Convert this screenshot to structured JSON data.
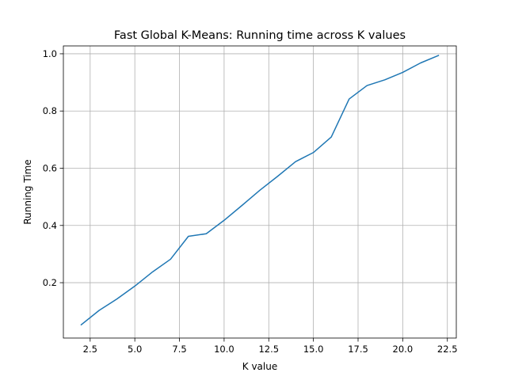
{
  "chart_data": {
    "type": "line",
    "title": "Fast Global K-Means: Running time across K values",
    "xlabel": "K value",
    "ylabel": "Running Time",
    "xlim": [
      1.0,
      23.0
    ],
    "ylim": [
      0.0065,
      1.0275
    ],
    "xticks": [
      2.5,
      5.0,
      7.5,
      10.0,
      12.5,
      15.0,
      17.5,
      20.0,
      22.5
    ],
    "xtick_labels": [
      "2.5",
      "5.0",
      "7.5",
      "10.0",
      "12.5",
      "15.0",
      "17.5",
      "20.0",
      "22.5"
    ],
    "yticks": [
      0.2,
      0.4,
      0.6,
      0.8,
      1.0
    ],
    "ytick_labels": [
      "0.2",
      "0.4",
      "0.6",
      "0.8",
      "1.0"
    ],
    "grid": true,
    "series": [
      {
        "color": "#1f77b4",
        "x": [
          2,
          3,
          4,
          5,
          6,
          7,
          8,
          9,
          10,
          11,
          12,
          13,
          14,
          15,
          16,
          17,
          18,
          19,
          20,
          21,
          22
        ],
        "y": [
          0.053,
          0.103,
          0.143,
          0.188,
          0.238,
          0.282,
          0.362,
          0.371,
          0.418,
          0.47,
          0.523,
          0.572,
          0.623,
          0.655,
          0.709,
          0.842,
          0.889,
          0.909,
          0.935,
          0.968,
          0.994
        ]
      }
    ]
  }
}
